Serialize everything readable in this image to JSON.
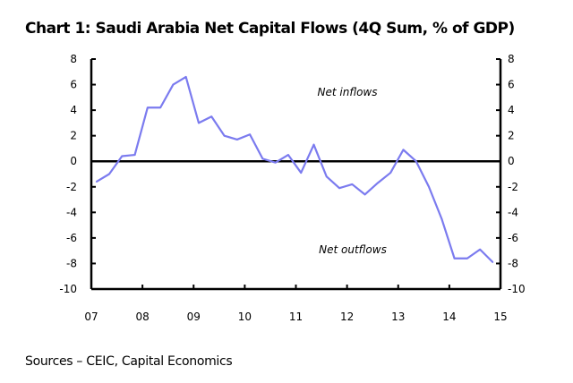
{
  "chart_data": {
    "type": "line",
    "title": "Chart 1: Saudi Arabia Net Capital Flows (4Q Sum, % of GDP)",
    "source": "Sources – CEIC, Capital Economics",
    "xlabel": "",
    "ylabel": "",
    "xlim": [
      7,
      15
    ],
    "ylim": [
      -10,
      8
    ],
    "x_ticks": [
      "07",
      "08",
      "09",
      "10",
      "11",
      "12",
      "13",
      "14",
      "15"
    ],
    "y_ticks": [
      "8",
      "6",
      "4",
      "2",
      "0",
      "-2",
      "-4",
      "-6",
      "-8",
      "-10"
    ],
    "annotations": [
      "Net inflows",
      "Net outflows"
    ],
    "series": [
      {
        "name": "Net Capital Flows",
        "color": "#7b7bef",
        "x": [
          7.1,
          7.35,
          7.6,
          7.85,
          8.1,
          8.35,
          8.6,
          8.85,
          9.1,
          9.35,
          9.6,
          9.85,
          10.1,
          10.35,
          10.6,
          10.85,
          11.1,
          11.35,
          11.6,
          11.85,
          12.1,
          12.35,
          12.6,
          12.85,
          13.1,
          13.35,
          13.6,
          13.85,
          14.1,
          14.35,
          14.6,
          14.85
        ],
        "values": [
          -1.6,
          -1.0,
          0.4,
          0.5,
          4.2,
          4.2,
          6.0,
          6.6,
          3.0,
          3.5,
          2.0,
          1.7,
          2.1,
          0.2,
          -0.1,
          0.5,
          -0.9,
          1.3,
          -1.2,
          -2.1,
          -1.8,
          -2.6,
          -1.7,
          -0.9,
          0.9,
          0.0,
          -2.0,
          -4.5,
          -7.6,
          -7.6,
          -6.9,
          -7.9
        ]
      }
    ]
  }
}
